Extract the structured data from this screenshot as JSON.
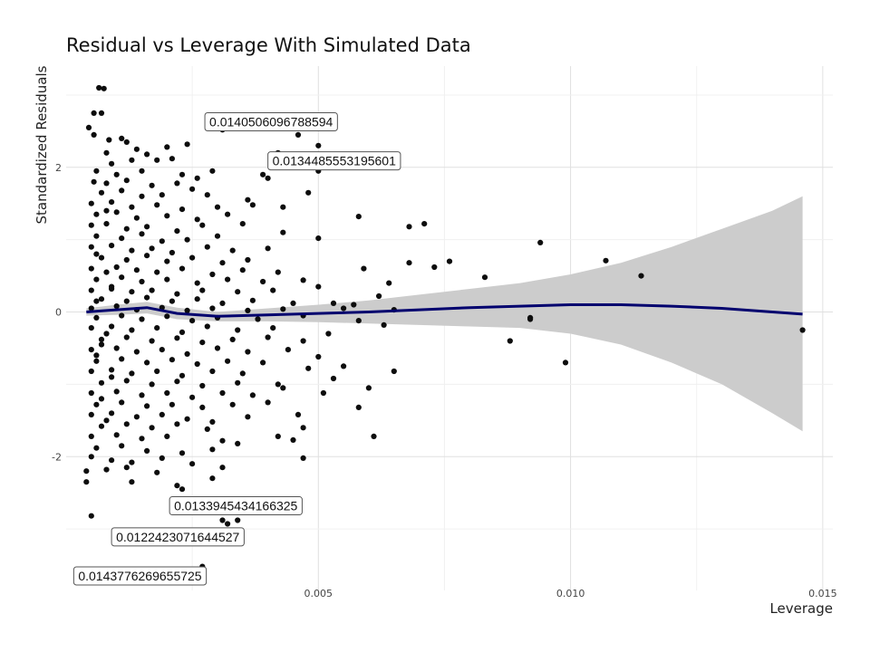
{
  "chart_data": {
    "type": "scatter",
    "title": "Residual vs Leverage With Simulated Data",
    "xlabel": "Leverage",
    "ylabel": "Standardized Residuals",
    "xlim": [
      0.0,
      0.0152
    ],
    "ylim": [
      -3.85,
      3.4
    ],
    "x_ticks": [
      0.005,
      0.01,
      0.015
    ],
    "x_tick_labels": [
      "0.005",
      "0.010",
      "0.015"
    ],
    "y_ticks": [
      -2,
      0,
      2
    ],
    "y_tick_labels": [
      "-2",
      "0",
      "2"
    ],
    "grid": true,
    "legend": "none",
    "colors": {
      "points": "#0d0d0d",
      "smooth": "#00006e",
      "ribbon": "#cccccc",
      "grid": "#e0e0e0"
    },
    "points": [
      [
        0.00065,
        3.1
      ],
      [
        0.00075,
        3.09
      ],
      [
        0.00055,
        2.75
      ],
      [
        0.0007,
        2.75
      ],
      [
        0.00045,
        2.55
      ],
      [
        0.00055,
        2.45
      ],
      [
        0.00085,
        2.38
      ],
      [
        0.0011,
        2.4
      ],
      [
        0.0012,
        2.35
      ],
      [
        0.0008,
        2.2
      ],
      [
        0.0014,
        2.25
      ],
      [
        0.0016,
        2.18
      ],
      [
        0.002,
        2.28
      ],
      [
        0.0024,
        2.32
      ],
      [
        0.0009,
        2.05
      ],
      [
        0.0013,
        2.1
      ],
      [
        0.0018,
        2.1
      ],
      [
        0.0021,
        2.12
      ],
      [
        0.0006,
        1.95
      ],
      [
        0.001,
        1.9
      ],
      [
        0.0015,
        1.95
      ],
      [
        0.0023,
        1.9
      ],
      [
        0.0029,
        1.95
      ],
      [
        0.00055,
        1.8
      ],
      [
        0.0008,
        1.78
      ],
      [
        0.0012,
        1.82
      ],
      [
        0.0017,
        1.75
      ],
      [
        0.0022,
        1.78
      ],
      [
        0.0026,
        1.85
      ],
      [
        0.0039,
        1.9
      ],
      [
        0.004,
        1.85
      ],
      [
        0.0007,
        1.65
      ],
      [
        0.0011,
        1.68
      ],
      [
        0.0015,
        1.6
      ],
      [
        0.0019,
        1.62
      ],
      [
        0.0025,
        1.7
      ],
      [
        0.0028,
        1.62
      ],
      [
        0.0048,
        1.65
      ],
      [
        0.0005,
        1.5
      ],
      [
        0.0009,
        1.52
      ],
      [
        0.0013,
        1.45
      ],
      [
        0.0018,
        1.48
      ],
      [
        0.0023,
        1.42
      ],
      [
        0.003,
        1.45
      ],
      [
        0.0036,
        1.55
      ],
      [
        0.0037,
        1.48
      ],
      [
        0.0006,
        1.35
      ],
      [
        0.001,
        1.38
      ],
      [
        0.0014,
        1.3
      ],
      [
        0.002,
        1.33
      ],
      [
        0.0026,
        1.28
      ],
      [
        0.0032,
        1.35
      ],
      [
        0.0043,
        1.45
      ],
      [
        0.0058,
        1.32
      ],
      [
        0.0005,
        1.2
      ],
      [
        0.0008,
        1.22
      ],
      [
        0.0012,
        1.15
      ],
      [
        0.0016,
        1.18
      ],
      [
        0.0022,
        1.12
      ],
      [
        0.0027,
        1.2
      ],
      [
        0.0035,
        1.22
      ],
      [
        0.0043,
        1.1
      ],
      [
        0.0068,
        1.18
      ],
      [
        0.0071,
        1.22
      ],
      [
        0.0006,
        1.05
      ],
      [
        0.0011,
        1.02
      ],
      [
        0.0015,
        1.08
      ],
      [
        0.0019,
        0.98
      ],
      [
        0.0024,
        1.0
      ],
      [
        0.003,
        1.05
      ],
      [
        0.005,
        1.02
      ],
      [
        0.0005,
        0.9
      ],
      [
        0.0009,
        0.92
      ],
      [
        0.0013,
        0.85
      ],
      [
        0.0017,
        0.88
      ],
      [
        0.0021,
        0.82
      ],
      [
        0.0028,
        0.9
      ],
      [
        0.0033,
        0.85
      ],
      [
        0.004,
        0.88
      ],
      [
        0.0094,
        0.96
      ],
      [
        0.0007,
        0.75
      ],
      [
        0.0012,
        0.72
      ],
      [
        0.0016,
        0.78
      ],
      [
        0.002,
        0.7
      ],
      [
        0.0025,
        0.75
      ],
      [
        0.0031,
        0.68
      ],
      [
        0.0036,
        0.72
      ],
      [
        0.0068,
        0.68
      ],
      [
        0.0076,
        0.7
      ],
      [
        0.0107,
        0.71
      ],
      [
        0.0005,
        0.6
      ],
      [
        0.001,
        0.62
      ],
      [
        0.0014,
        0.58
      ],
      [
        0.0018,
        0.55
      ],
      [
        0.0023,
        0.6
      ],
      [
        0.0029,
        0.52
      ],
      [
        0.0035,
        0.58
      ],
      [
        0.0042,
        0.55
      ],
      [
        0.0059,
        0.6
      ],
      [
        0.0073,
        0.62
      ],
      [
        0.0006,
        0.45
      ],
      [
        0.0011,
        0.48
      ],
      [
        0.0015,
        0.42
      ],
      [
        0.002,
        0.45
      ],
      [
        0.0026,
        0.4
      ],
      [
        0.0032,
        0.45
      ],
      [
        0.0039,
        0.42
      ],
      [
        0.0047,
        0.44
      ],
      [
        0.0083,
        0.48
      ],
      [
        0.0114,
        0.5
      ],
      [
        0.0005,
        0.3
      ],
      [
        0.0009,
        0.32
      ],
      [
        0.0013,
        0.28
      ],
      [
        0.0017,
        0.3
      ],
      [
        0.0022,
        0.25
      ],
      [
        0.0027,
        0.3
      ],
      [
        0.0034,
        0.28
      ],
      [
        0.0041,
        0.3
      ],
      [
        0.005,
        0.35
      ],
      [
        0.0064,
        0.4
      ],
      [
        0.0007,
        0.18
      ],
      [
        0.0012,
        0.15
      ],
      [
        0.0016,
        0.2
      ],
      [
        0.0021,
        0.15
      ],
      [
        0.0026,
        0.18
      ],
      [
        0.0031,
        0.12
      ],
      [
        0.0037,
        0.16
      ],
      [
        0.0045,
        0.12
      ],
      [
        0.0053,
        0.12
      ],
      [
        0.0057,
        0.1
      ],
      [
        0.0062,
        0.22
      ],
      [
        0.0005,
        0.05
      ],
      [
        0.001,
        0.08
      ],
      [
        0.0014,
        0.03
      ],
      [
        0.0019,
        0.06
      ],
      [
        0.0024,
        0.02
      ],
      [
        0.0029,
        0.05
      ],
      [
        0.0036,
        0.02
      ],
      [
        0.0043,
        0.04
      ],
      [
        0.0055,
        0.05
      ],
      [
        0.0065,
        0.03
      ],
      [
        0.0006,
        -0.08
      ],
      [
        0.0011,
        -0.05
      ],
      [
        0.0015,
        -0.1
      ],
      [
        0.002,
        -0.06
      ],
      [
        0.0025,
        -0.12
      ],
      [
        0.003,
        -0.08
      ],
      [
        0.0038,
        -0.1
      ],
      [
        0.0047,
        -0.05
      ],
      [
        0.0058,
        -0.12
      ],
      [
        0.0092,
        -0.08
      ],
      [
        0.0092,
        -0.1
      ],
      [
        0.0146,
        -0.25
      ],
      [
        0.0005,
        -0.22
      ],
      [
        0.0009,
        -0.2
      ],
      [
        0.0013,
        -0.25
      ],
      [
        0.0018,
        -0.22
      ],
      [
        0.0023,
        -0.28
      ],
      [
        0.0028,
        -0.2
      ],
      [
        0.0034,
        -0.25
      ],
      [
        0.0041,
        -0.22
      ],
      [
        0.0052,
        -0.3
      ],
      [
        0.0063,
        -0.18
      ],
      [
        0.0007,
        -0.38
      ],
      [
        0.0012,
        -0.35
      ],
      [
        0.0017,
        -0.4
      ],
      [
        0.0022,
        -0.36
      ],
      [
        0.0027,
        -0.42
      ],
      [
        0.0033,
        -0.38
      ],
      [
        0.004,
        -0.35
      ],
      [
        0.0047,
        -0.4
      ],
      [
        0.0088,
        -0.4
      ],
      [
        0.0005,
        -0.52
      ],
      [
        0.001,
        -0.5
      ],
      [
        0.0014,
        -0.55
      ],
      [
        0.0019,
        -0.52
      ],
      [
        0.0024,
        -0.58
      ],
      [
        0.003,
        -0.5
      ],
      [
        0.0036,
        -0.55
      ],
      [
        0.0044,
        -0.52
      ],
      [
        0.005,
        -0.62
      ],
      [
        0.0006,
        -0.68
      ],
      [
        0.0011,
        -0.65
      ],
      [
        0.0016,
        -0.7
      ],
      [
        0.0021,
        -0.66
      ],
      [
        0.0026,
        -0.72
      ],
      [
        0.0032,
        -0.68
      ],
      [
        0.0039,
        -0.7
      ],
      [
        0.0048,
        -0.78
      ],
      [
        0.0055,
        -0.75
      ],
      [
        0.0099,
        -0.7
      ],
      [
        0.0005,
        -0.82
      ],
      [
        0.0009,
        -0.8
      ],
      [
        0.0013,
        -0.85
      ],
      [
        0.0018,
        -0.82
      ],
      [
        0.0023,
        -0.88
      ],
      [
        0.0029,
        -0.82
      ],
      [
        0.0035,
        -0.85
      ],
      [
        0.0065,
        -0.82
      ],
      [
        0.0007,
        -0.98
      ],
      [
        0.0012,
        -0.95
      ],
      [
        0.0017,
        -1.0
      ],
      [
        0.0022,
        -0.96
      ],
      [
        0.0027,
        -1.02
      ],
      [
        0.0034,
        -0.98
      ],
      [
        0.0042,
        -1.0
      ],
      [
        0.0053,
        -0.92
      ],
      [
        0.0005,
        -1.12
      ],
      [
        0.001,
        -1.1
      ],
      [
        0.0015,
        -1.15
      ],
      [
        0.002,
        -1.12
      ],
      [
        0.0025,
        -1.18
      ],
      [
        0.0031,
        -1.12
      ],
      [
        0.0037,
        -1.15
      ],
      [
        0.0043,
        -1.05
      ],
      [
        0.0051,
        -1.12
      ],
      [
        0.006,
        -1.05
      ],
      [
        0.0006,
        -1.28
      ],
      [
        0.0011,
        -1.25
      ],
      [
        0.0016,
        -1.3
      ],
      [
        0.0021,
        -1.28
      ],
      [
        0.0027,
        -1.32
      ],
      [
        0.0033,
        -1.28
      ],
      [
        0.004,
        -1.25
      ],
      [
        0.0058,
        -1.32
      ],
      [
        0.0005,
        -1.42
      ],
      [
        0.0009,
        -1.4
      ],
      [
        0.0014,
        -1.45
      ],
      [
        0.0019,
        -1.42
      ],
      [
        0.0024,
        -1.48
      ],
      [
        0.0029,
        -1.52
      ],
      [
        0.0036,
        -1.45
      ],
      [
        0.0046,
        -1.42
      ],
      [
        0.0007,
        -1.58
      ],
      [
        0.0012,
        -1.55
      ],
      [
        0.0017,
        -1.6
      ],
      [
        0.0022,
        -1.55
      ],
      [
        0.0028,
        -1.62
      ],
      [
        0.0047,
        -1.6
      ],
      [
        0.0061,
        -1.72
      ],
      [
        0.0005,
        -1.72
      ],
      [
        0.001,
        -1.7
      ],
      [
        0.0015,
        -1.75
      ],
      [
        0.002,
        -1.72
      ],
      [
        0.0031,
        -1.78
      ],
      [
        0.0042,
        -1.72
      ],
      [
        0.0045,
        -1.77
      ],
      [
        0.0006,
        -1.88
      ],
      [
        0.0011,
        -1.85
      ],
      [
        0.0016,
        -1.92
      ],
      [
        0.0023,
        -1.95
      ],
      [
        0.0029,
        -1.9
      ],
      [
        0.0034,
        -1.82
      ],
      [
        0.0005,
        -2.0
      ],
      [
        0.0009,
        -2.05
      ],
      [
        0.0013,
        -2.08
      ],
      [
        0.0019,
        -2.02
      ],
      [
        0.0025,
        -2.1
      ],
      [
        0.0047,
        -2.02
      ],
      [
        0.0004,
        -2.2
      ],
      [
        0.0008,
        -2.18
      ],
      [
        0.0012,
        -2.15
      ],
      [
        0.0018,
        -2.22
      ],
      [
        0.0031,
        -2.15
      ],
      [
        0.0004,
        -2.35
      ],
      [
        0.0013,
        -2.35
      ],
      [
        0.0022,
        -2.4
      ],
      [
        0.0029,
        -2.3
      ],
      [
        0.0023,
        -2.45
      ],
      [
        0.0005,
        -2.82
      ],
      [
        0.0031,
        -2.88
      ],
      [
        0.0032,
        -2.93
      ],
      [
        0.0034,
        -2.88
      ],
      [
        0.0027,
        -3.52
      ],
      [
        0.0031,
        2.52
      ],
      [
        0.0046,
        2.45
      ],
      [
        0.0042,
        2.2
      ],
      [
        0.005,
        2.3
      ],
      [
        0.005,
        1.95
      ],
      [
        0.0008,
        0.55
      ],
      [
        0.0006,
        0.15
      ],
      [
        0.0008,
        -0.3
      ],
      [
        0.0006,
        -0.6
      ],
      [
        0.0009,
        -0.9
      ],
      [
        0.0007,
        -1.2
      ],
      [
        0.0008,
        1.4
      ],
      [
        0.0006,
        0.8
      ],
      [
        0.0009,
        0.35
      ],
      [
        0.0007,
        -0.45
      ],
      [
        0.0008,
        -1.5
      ]
    ],
    "smooth_line": {
      "x": [
        0.0004,
        0.001,
        0.0016,
        0.0022,
        0.003,
        0.004,
        0.005,
        0.006,
        0.007,
        0.008,
        0.009,
        0.01,
        0.011,
        0.012,
        0.013,
        0.014,
        0.0146
      ],
      "y": [
        0.0,
        0.03,
        0.06,
        -0.02,
        -0.06,
        -0.04,
        -0.02,
        0.0,
        0.03,
        0.06,
        0.08,
        0.1,
        0.1,
        0.08,
        0.05,
        0.0,
        -0.03
      ],
      "lower": [
        -0.05,
        -0.04,
        -0.02,
        -0.1,
        -0.13,
        -0.13,
        -0.14,
        -0.16,
        -0.18,
        -0.2,
        -0.22,
        -0.3,
        -0.45,
        -0.7,
        -1.0,
        -1.4,
        -1.65
      ],
      "upper": [
        0.05,
        0.1,
        0.14,
        0.06,
        0.0,
        0.05,
        0.1,
        0.16,
        0.24,
        0.32,
        0.4,
        0.52,
        0.68,
        0.9,
        1.15,
        1.4,
        1.6
      ]
    },
    "annotations": [
      {
        "text": "0.0140506096788594",
        "x": 0.00275,
        "y": 2.63
      },
      {
        "text": "0.0134485553195601",
        "x": 0.004,
        "y": 2.09
      },
      {
        "text": "0.0133945434166325",
        "x": 0.00205,
        "y": -2.68
      },
      {
        "text": "0.0122423071644527",
        "x": 0.0009,
        "y": -3.11
      },
      {
        "text": "0.0143776269655725",
        "x": 0.00015,
        "y": -3.65
      }
    ]
  }
}
